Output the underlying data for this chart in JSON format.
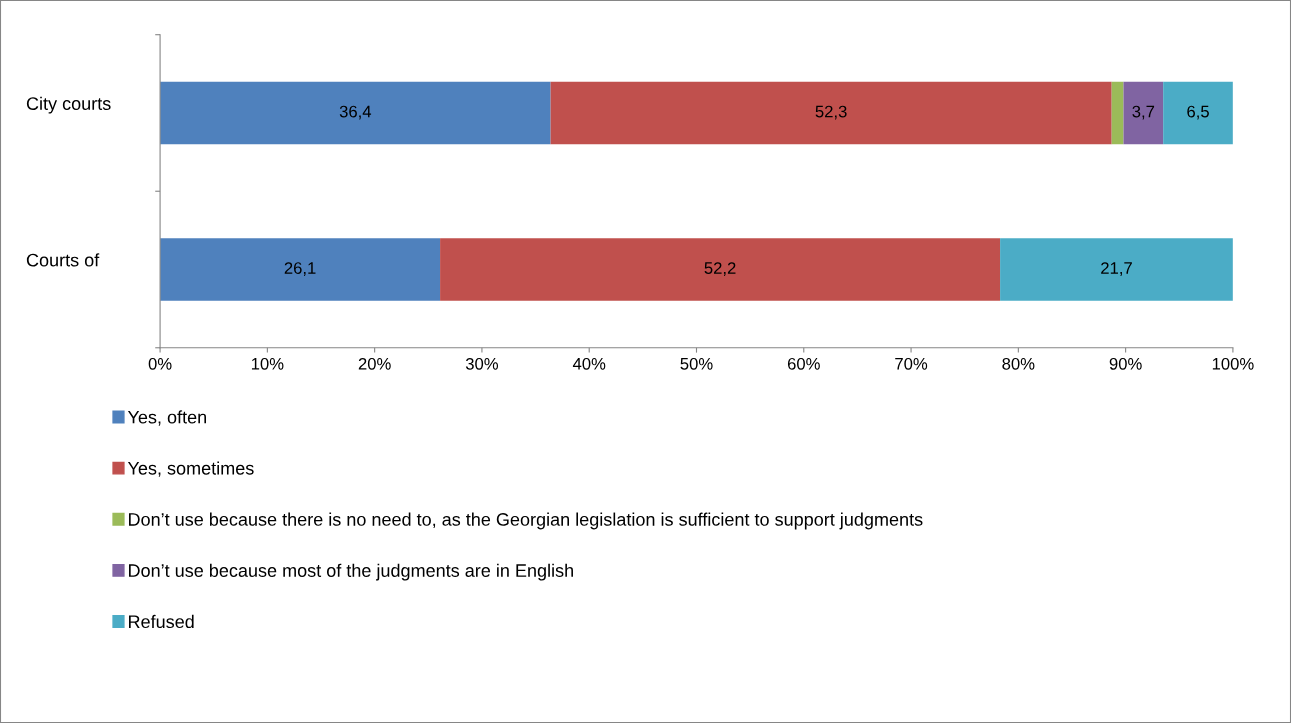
{
  "chart_data": {
    "type": "bar",
    "orientation": "horizontal",
    "stacked": true,
    "categories": [
      "City courts",
      "Courts of"
    ],
    "series": [
      {
        "name": "Yes, often",
        "color": "#4f81bd",
        "values": [
          36.4,
          26.1
        ],
        "value_labels": [
          "36,4",
          "26,1"
        ]
      },
      {
        "name": "Yes, sometimes",
        "color": "#c0504d",
        "values": [
          52.3,
          52.2
        ],
        "value_labels": [
          "52,3",
          "52,2"
        ]
      },
      {
        "name": "Don’t use because there is no need to, as the Georgian legislation is sufficient to support judgments",
        "color": "#9bbb59",
        "values": [
          1.1,
          0
        ],
        "value_labels": [
          null,
          null
        ]
      },
      {
        "name": "Don’t use because most of the judgments are in English",
        "color": "#8064a2",
        "values": [
          3.7,
          0
        ],
        "value_labels": [
          "3,7",
          null
        ]
      },
      {
        "name": "Refused",
        "color": "#4bacc6",
        "values": [
          6.5,
          21.7
        ],
        "value_labels": [
          "6,5",
          "21,7"
        ]
      }
    ],
    "xlim": [
      0,
      100
    ],
    "xticks": [
      {
        "value": 0,
        "label": "0%"
      },
      {
        "value": 10,
        "label": "10%"
      },
      {
        "value": 20,
        "label": "20%"
      },
      {
        "value": 30,
        "label": "30%"
      },
      {
        "value": 40,
        "label": "40%"
      },
      {
        "value": 50,
        "label": "50%"
      },
      {
        "value": 60,
        "label": "60%"
      },
      {
        "value": 70,
        "label": "70%"
      },
      {
        "value": 80,
        "label": "80%"
      },
      {
        "value": 90,
        "label": "90%"
      },
      {
        "value": 100,
        "label": "100%"
      }
    ],
    "grid": false,
    "legend": "bottom"
  }
}
